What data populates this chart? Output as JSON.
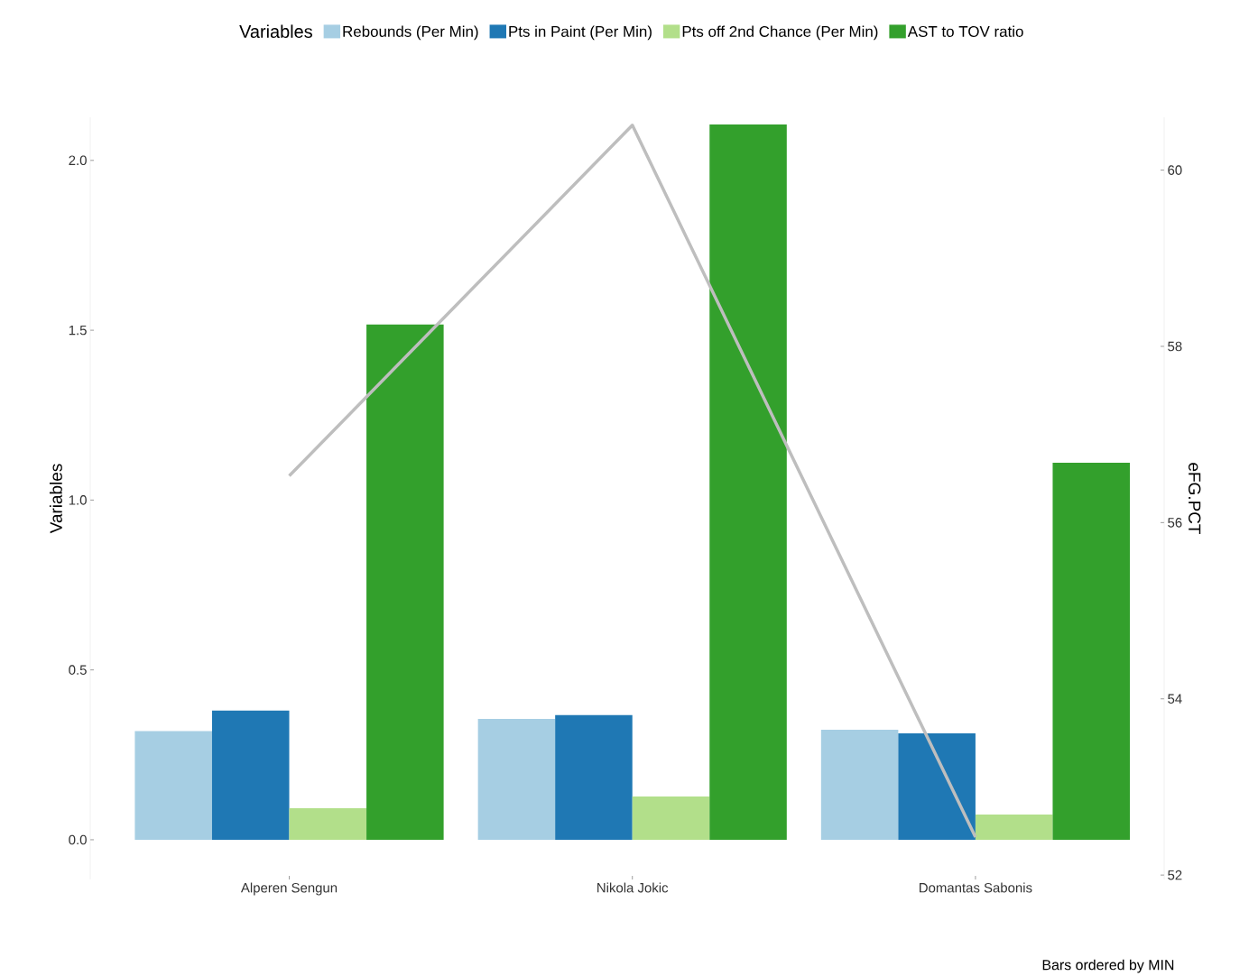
{
  "chart_data": {
    "type": "bar",
    "categories": [
      "Alperen Sengun",
      "Nikola Jokic",
      "Domantas Sabonis"
    ],
    "series": [
      {
        "name": "Rebounds (Per Min)",
        "color": "#a6cee3",
        "values": [
          0.32,
          0.356,
          0.324
        ]
      },
      {
        "name": "Pts in Paint (Per Min)",
        "color": "#1f78b4",
        "values": [
          0.38,
          0.367,
          0.313
        ]
      },
      {
        "name": "Pts off 2nd Chance (Per Min)",
        "color": "#b2df8a",
        "values": [
          0.093,
          0.127,
          0.074
        ]
      },
      {
        "name": "AST to TOV ratio",
        "color": "#33a02c",
        "values": [
          1.517,
          2.106,
          1.11
        ]
      },
      {
        "type": "line",
        "axis": "y2",
        "color": "#bebebe",
        "values": [
          56.53,
          60.51,
          52.43
        ]
      }
    ],
    "legend_title": "Variables",
    "legend": "top",
    "grid": false,
    "ylabel": "Variables",
    "y2label": "eFG.PCT",
    "ylim": [
      -0.117,
      2.127
    ],
    "yticks": [
      {
        "value": 0,
        "label": "0.0"
      },
      {
        "value": 0.5,
        "label": "0.5"
      },
      {
        "value": 1,
        "label": "1.0"
      },
      {
        "value": 1.5,
        "label": "1.5"
      },
      {
        "value": 2,
        "label": "2.0"
      }
    ],
    "y2lim": [
      51.95,
      60.6
    ],
    "y2ticks": [
      52,
      54,
      56,
      58,
      60
    ],
    "annotations": [
      "Bars ordered by MIN"
    ]
  }
}
